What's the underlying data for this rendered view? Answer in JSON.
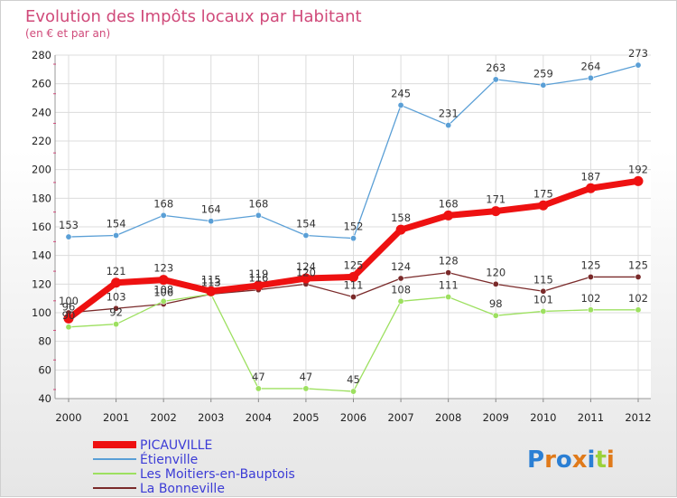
{
  "chart_data": {
    "type": "line",
    "title": "Evolution des Impôts locaux par Habitant",
    "subtitle": "(en € et par an)",
    "x": [
      "2000",
      "2001",
      "2002",
      "2003",
      "2004",
      "2005",
      "2006",
      "2007",
      "2008",
      "2009",
      "2010",
      "2011",
      "2012"
    ],
    "ylim": [
      40,
      280
    ],
    "yticks": [
      40,
      60,
      80,
      100,
      120,
      140,
      160,
      180,
      200,
      220,
      240,
      260,
      280
    ],
    "grid": true,
    "legend_position": "bottom-left",
    "series": [
      {
        "name": "PICAUVILLE",
        "color": "#ee1111",
        "values": [
          96,
          121,
          123,
          115,
          119,
          124,
          125,
          158,
          168,
          171,
          175,
          187,
          192
        ]
      },
      {
        "name": "Étienville",
        "color": "#5a9fd6",
        "values": [
          153,
          154,
          168,
          164,
          168,
          154,
          152,
          245,
          231,
          263,
          259,
          264,
          273
        ]
      },
      {
        "name": "Les Moitiers-en-Bauptois",
        "color": "#9de060",
        "values": [
          90,
          92,
          108,
          113,
          47,
          47,
          45,
          108,
          111,
          98,
          101,
          102,
          102
        ]
      },
      {
        "name": "La Bonneville",
        "color": "#7a2a2a",
        "values": [
          100,
          103,
          106,
          113,
          116,
          120,
          111,
          124,
          128,
          120,
          115,
          125,
          125
        ]
      }
    ]
  },
  "logo": {
    "text": "Proxiti"
  }
}
